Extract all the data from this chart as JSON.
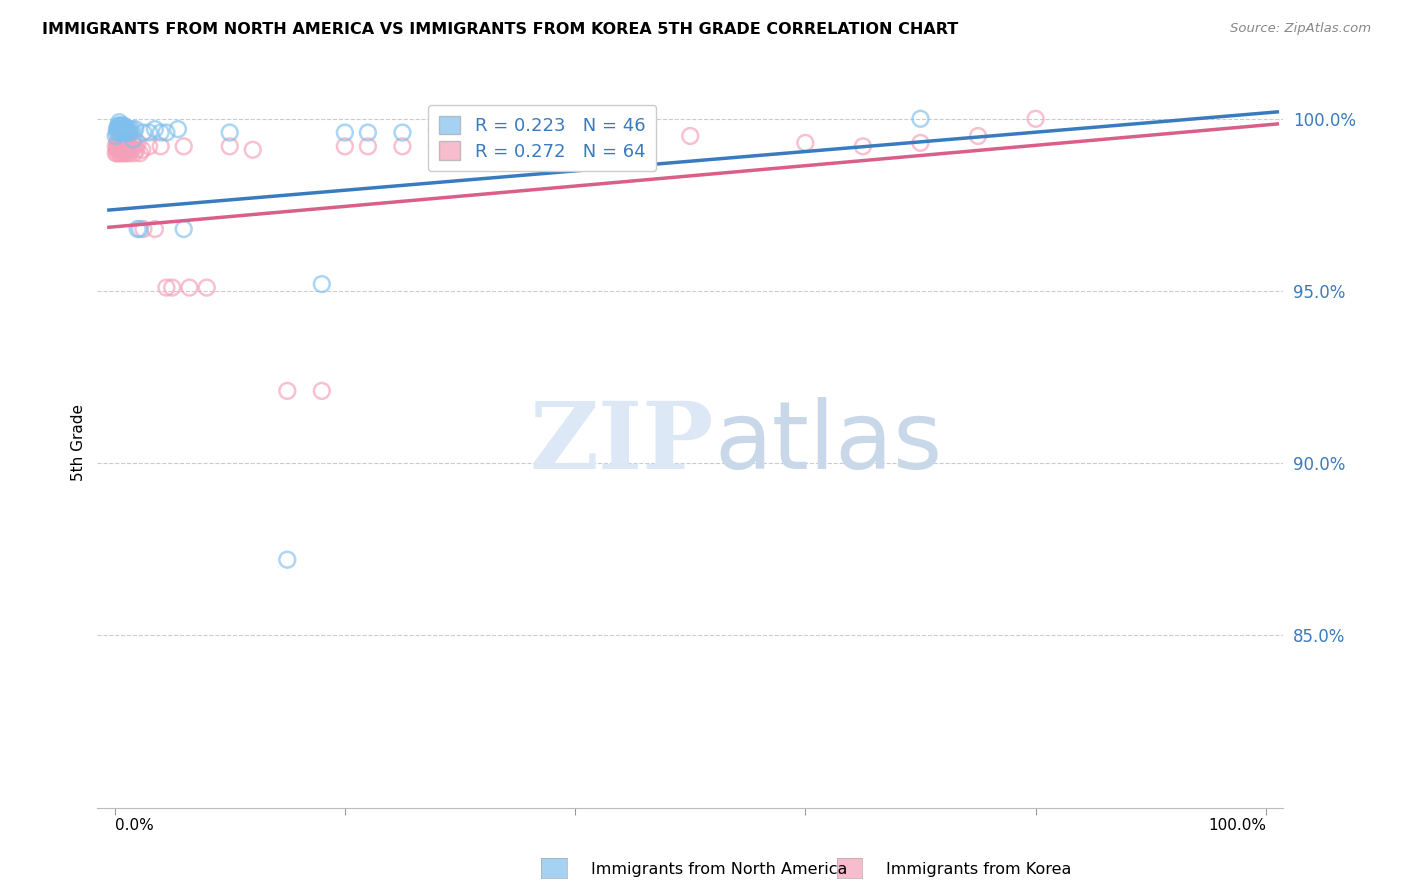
{
  "title": "IMMIGRANTS FROM NORTH AMERICA VS IMMIGRANTS FROM KOREA 5TH GRADE CORRELATION CHART",
  "source": "Source: ZipAtlas.com",
  "ylabel": "5th Grade",
  "blue_color": "#7fbfed",
  "pink_color": "#f4a0b8",
  "blue_line_color": "#3a7bbf",
  "pink_line_color": "#d95f8a",
  "legend_blue_label": "R = 0.223   N = 46",
  "legend_pink_label": "R = 0.272   N = 64",
  "legend_label_blue": "Immigrants from North America",
  "legend_label_pink": "Immigrants from Korea",
  "watermark_zip": "ZIP",
  "watermark_atlas": "atlas",
  "blue_scatter_x": [
    0.001,
    0.002,
    0.002,
    0.003,
    0.003,
    0.004,
    0.004,
    0.004,
    0.005,
    0.005,
    0.005,
    0.006,
    0.006,
    0.007,
    0.007,
    0.008,
    0.008,
    0.009,
    0.009,
    0.01,
    0.01,
    0.011,
    0.012,
    0.013,
    0.014,
    0.015,
    0.016,
    0.018,
    0.02,
    0.022,
    0.025,
    0.03,
    0.035,
    0.04,
    0.045,
    0.055,
    0.06,
    0.1,
    0.15,
    0.18,
    0.2,
    0.22,
    0.25,
    0.28,
    0.3,
    0.7
  ],
  "blue_scatter_y": [
    0.995,
    0.997,
    0.996,
    0.998,
    0.997,
    0.996,
    0.998,
    0.999,
    0.997,
    0.996,
    0.998,
    0.997,
    0.996,
    0.998,
    0.997,
    0.996,
    0.998,
    0.997,
    0.996,
    0.997,
    0.996,
    0.997,
    0.996,
    0.997,
    0.996,
    0.997,
    0.994,
    0.997,
    0.968,
    0.968,
    0.996,
    0.996,
    0.997,
    0.996,
    0.996,
    0.997,
    0.968,
    0.996,
    0.872,
    0.952,
    0.996,
    0.996,
    0.996,
    0.997,
    0.996,
    1.0
  ],
  "pink_scatter_x": [
    0.001,
    0.001,
    0.002,
    0.002,
    0.002,
    0.003,
    0.003,
    0.003,
    0.004,
    0.004,
    0.004,
    0.005,
    0.005,
    0.005,
    0.006,
    0.006,
    0.007,
    0.007,
    0.008,
    0.008,
    0.009,
    0.009,
    0.01,
    0.01,
    0.011,
    0.011,
    0.012,
    0.012,
    0.013,
    0.014,
    0.015,
    0.016,
    0.017,
    0.018,
    0.019,
    0.02,
    0.022,
    0.024,
    0.025,
    0.03,
    0.035,
    0.04,
    0.045,
    0.05,
    0.06,
    0.065,
    0.08,
    0.1,
    0.12,
    0.15,
    0.18,
    0.2,
    0.22,
    0.25,
    0.28,
    0.3,
    0.35,
    0.4,
    0.5,
    0.6,
    0.65,
    0.7,
    0.75,
    0.8
  ],
  "pink_scatter_y": [
    0.99,
    0.992,
    0.991,
    0.993,
    0.99,
    0.992,
    0.991,
    0.993,
    0.99,
    0.992,
    0.991,
    0.993,
    0.99,
    0.992,
    0.991,
    0.993,
    0.99,
    0.992,
    0.991,
    0.993,
    0.99,
    0.992,
    0.991,
    0.993,
    0.99,
    0.992,
    0.991,
    0.993,
    0.99,
    0.992,
    0.991,
    0.993,
    0.99,
    0.992,
    0.991,
    0.993,
    0.99,
    0.991,
    0.968,
    0.992,
    0.968,
    0.992,
    0.951,
    0.951,
    0.992,
    0.951,
    0.951,
    0.992,
    0.991,
    0.921,
    0.921,
    0.992,
    0.992,
    0.992,
    0.992,
    0.992,
    0.992,
    0.992,
    0.995,
    0.993,
    0.992,
    0.993,
    0.995,
    1.0
  ]
}
